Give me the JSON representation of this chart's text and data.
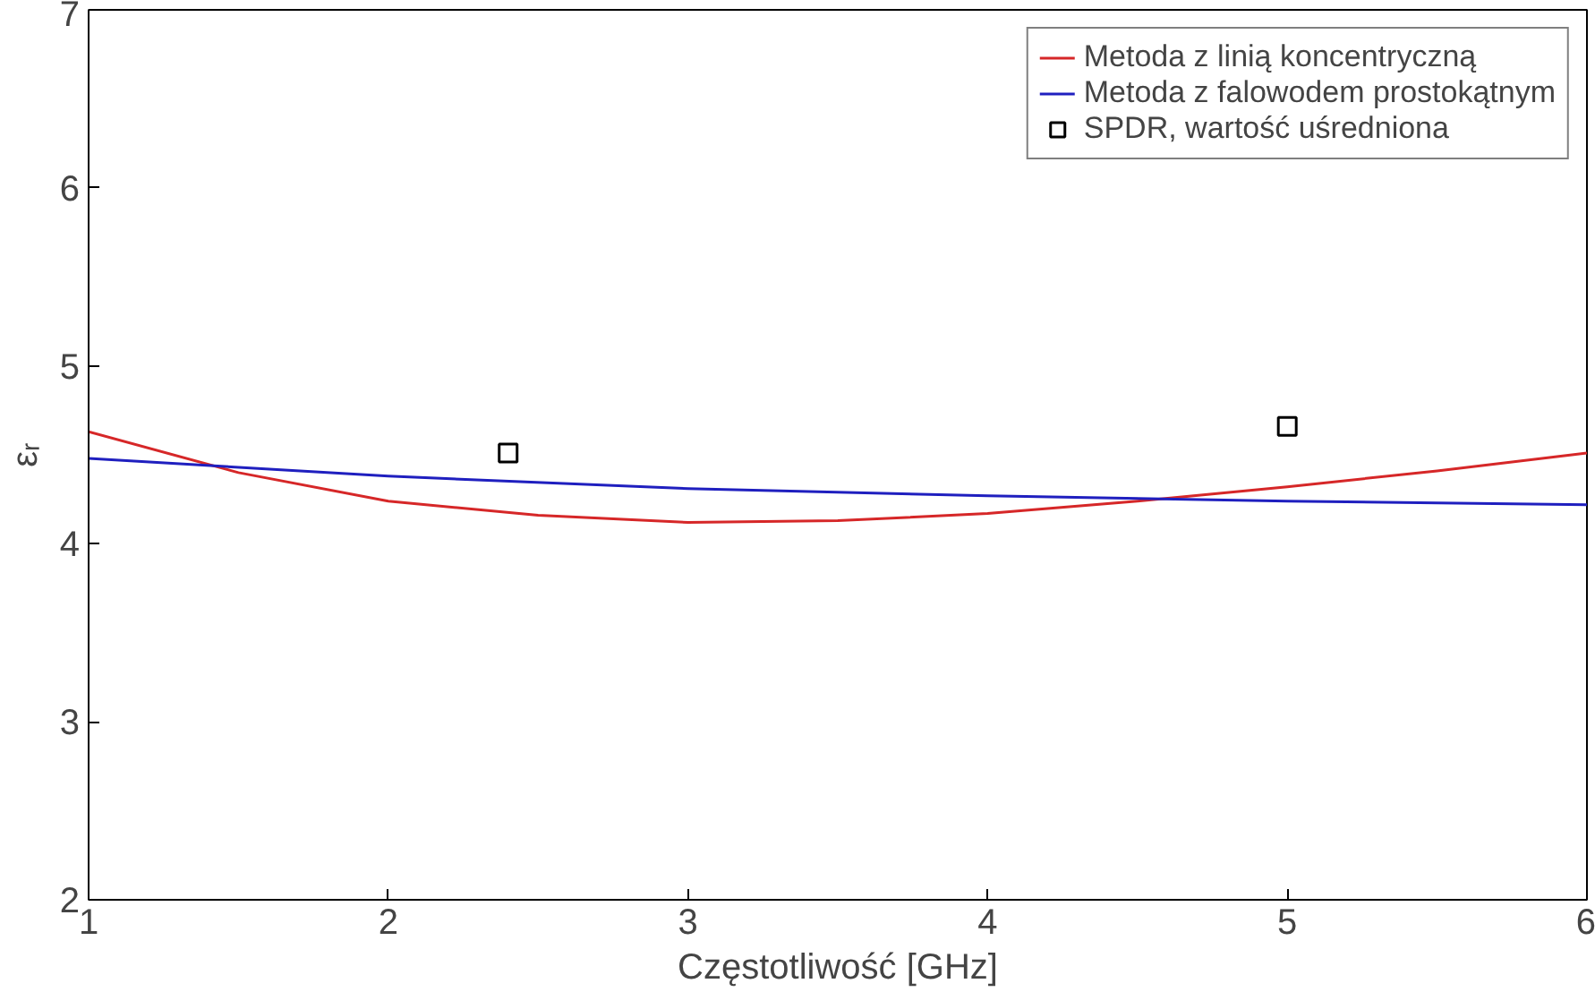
{
  "chart_data": {
    "type": "line",
    "xlabel": "Częstotliwość [GHz]",
    "ylabel": "εᵣ",
    "xlim": [
      1,
      6
    ],
    "ylim": [
      2,
      7
    ],
    "xticks": [
      1,
      2,
      3,
      4,
      5,
      6
    ],
    "yticks": [
      2,
      3,
      4,
      5,
      6,
      7
    ],
    "grid": false,
    "legend": "top right",
    "series": [
      {
        "name": "Metoda z linią koncentryczną",
        "color": "#d62728",
        "x": [
          1,
          1.5,
          2,
          2.5,
          3,
          3.5,
          4,
          4.5,
          5,
          5.5,
          6
        ],
        "values": [
          4.63,
          4.4,
          4.24,
          4.16,
          4.12,
          4.13,
          4.17,
          4.24,
          4.32,
          4.41,
          4.51
        ]
      },
      {
        "name": "Metoda z falowodem prostokątnym",
        "color": "#1f1fbf",
        "x": [
          1,
          2,
          3,
          4,
          5,
          6
        ],
        "values": [
          4.48,
          4.38,
          4.31,
          4.27,
          4.24,
          4.22
        ]
      },
      {
        "name": "SPDR, wartość uśredniona",
        "type": "scatter",
        "marker": "square",
        "color": "#000000",
        "x": [
          2.4,
          5.0
        ],
        "values": [
          4.51,
          4.66
        ]
      }
    ]
  }
}
